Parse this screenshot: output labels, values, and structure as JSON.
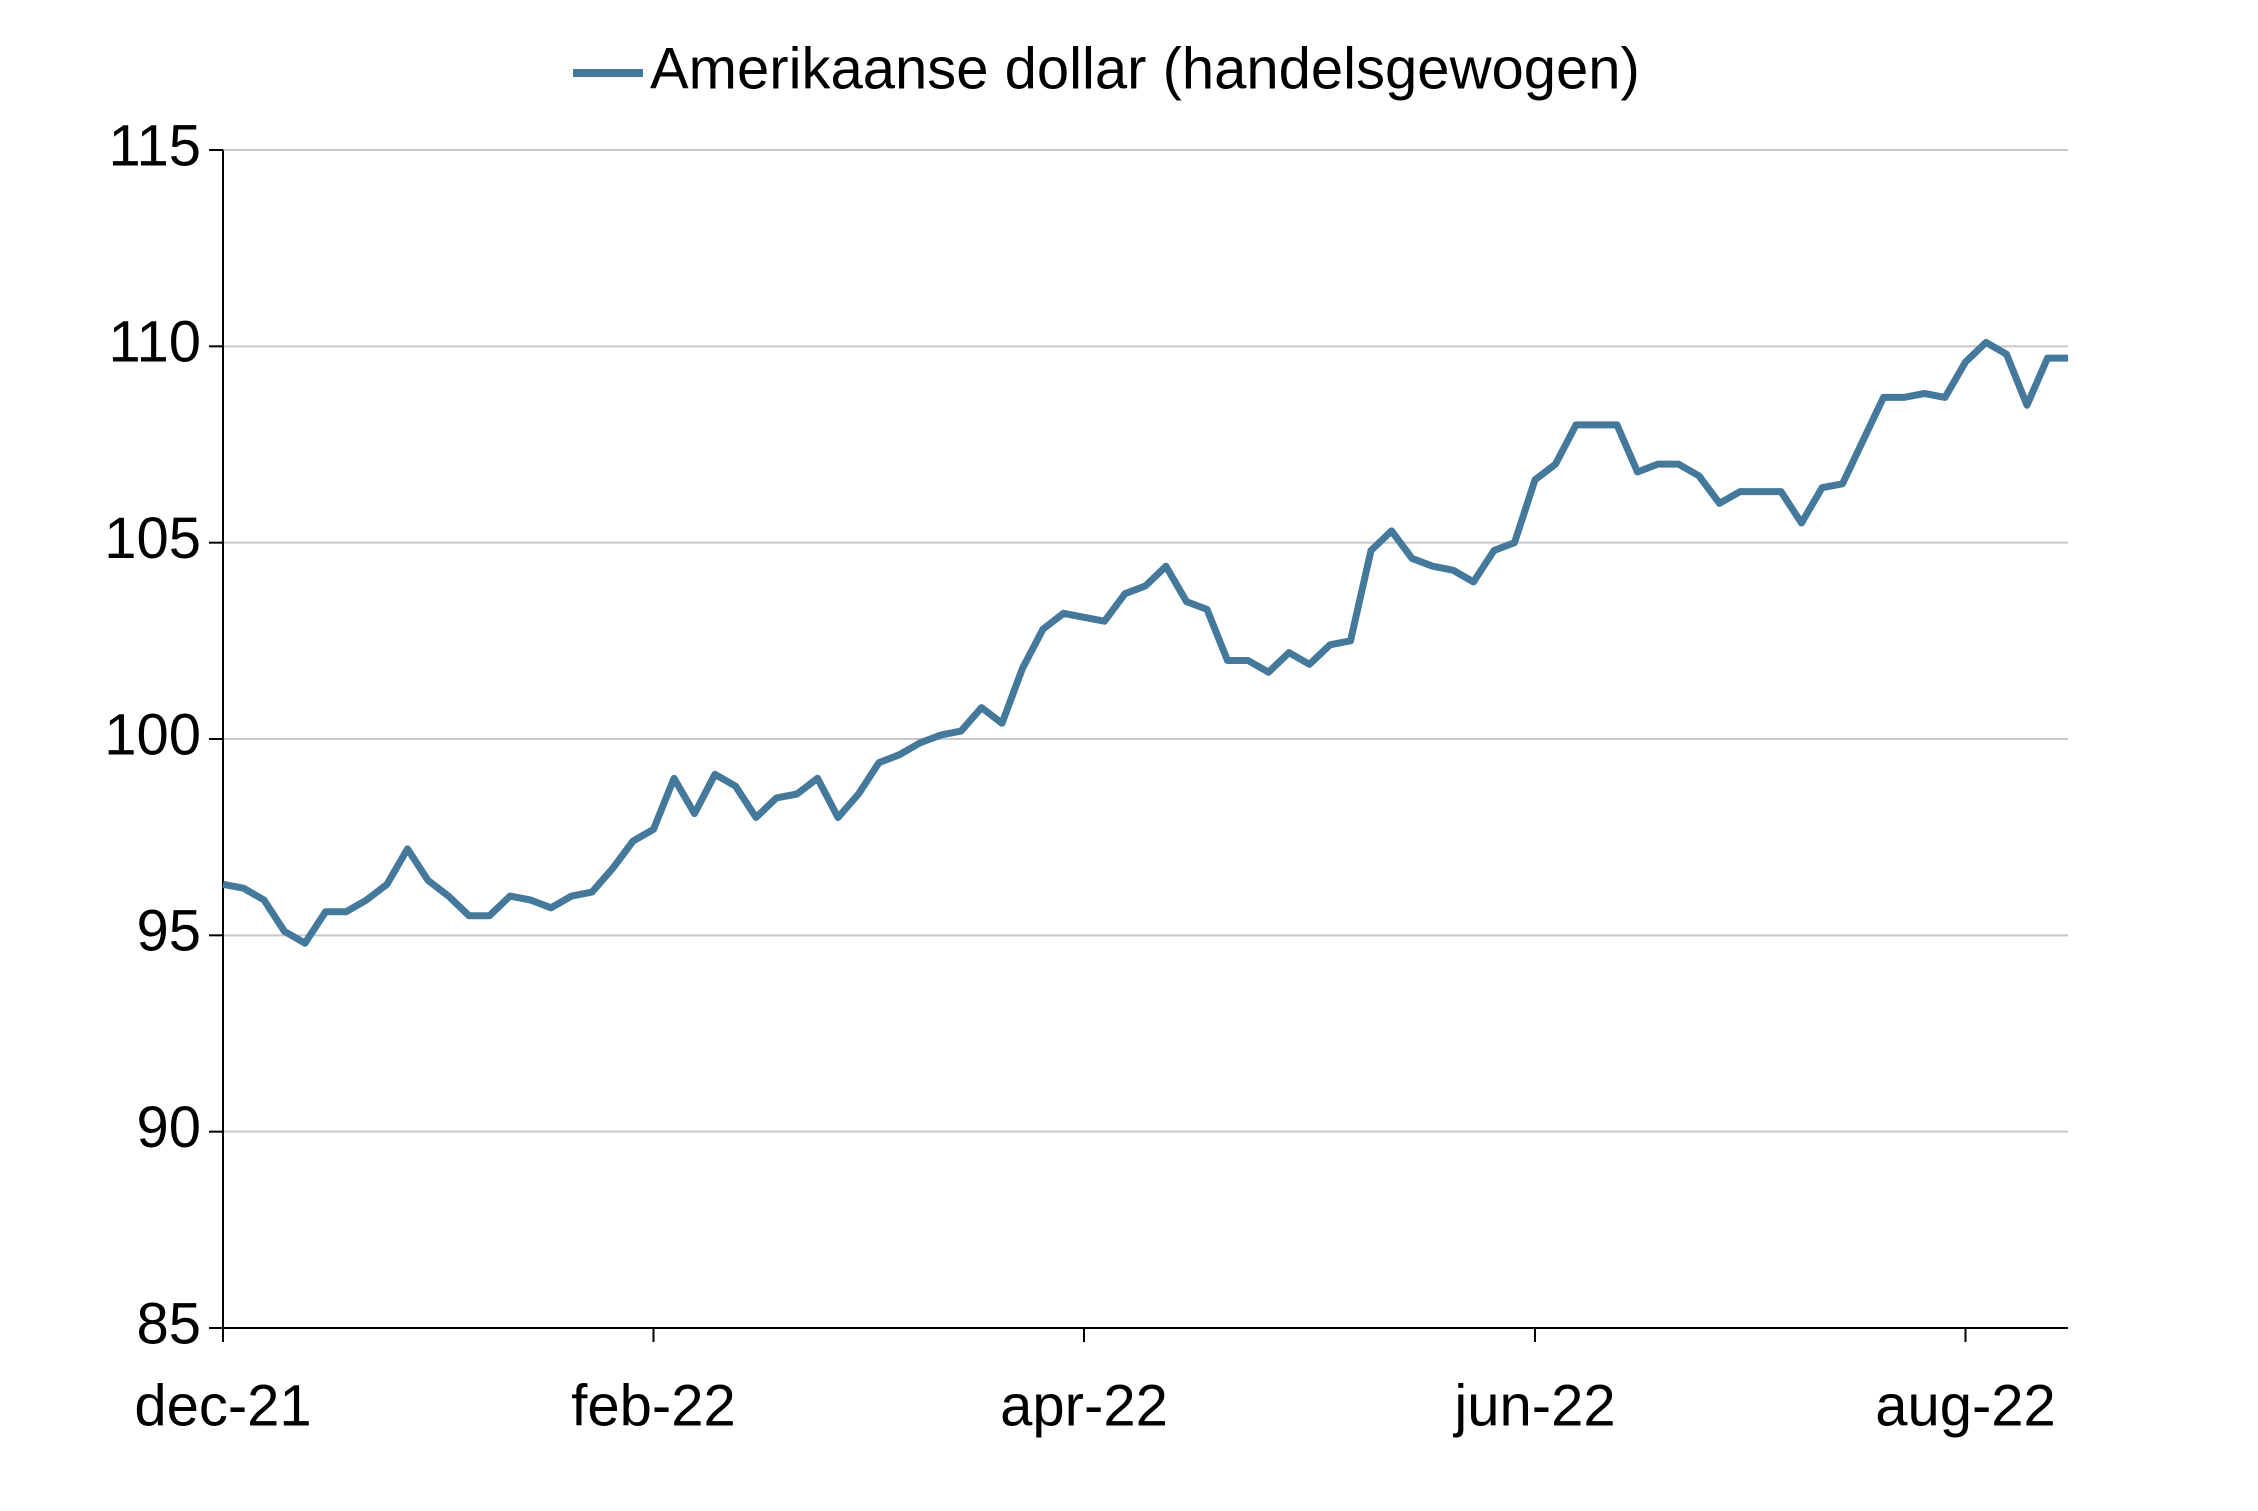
{
  "chart_data": {
    "type": "line",
    "categories": [
      "dec-21",
      null,
      null,
      null,
      null,
      null,
      null,
      null,
      null,
      null,
      null,
      null,
      null,
      null,
      null,
      null,
      null,
      null,
      null,
      null,
      null,
      "feb-22",
      null,
      null,
      null,
      null,
      null,
      null,
      null,
      null,
      null,
      null,
      null,
      null,
      null,
      null,
      null,
      null,
      null,
      null,
      null,
      null,
      "apr-22",
      null,
      null,
      null,
      null,
      null,
      null,
      null,
      null,
      null,
      null,
      null,
      null,
      null,
      null,
      null,
      null,
      null,
      null,
      null,
      null,
      null,
      "jun-22",
      null,
      null,
      null,
      null,
      null,
      null,
      null,
      null,
      null,
      null,
      null,
      null,
      null,
      null,
      null,
      null,
      null,
      null,
      null,
      null,
      "aug-22",
      null,
      null,
      null,
      null,
      null
    ],
    "series": [
      {
        "name": "Amerikaanse dollar (handelsgewogen)",
        "color": "#44799b",
        "values": [
          96.3,
          96.2,
          95.9,
          95.1,
          94.8,
          95.6,
          95.6,
          95.9,
          96.3,
          97.2,
          96.4,
          96.0,
          95.5,
          95.5,
          96.0,
          95.9,
          95.7,
          96.0,
          96.1,
          96.7,
          97.4,
          97.7,
          99.0,
          98.1,
          99.1,
          98.8,
          98.0,
          98.5,
          98.6,
          99.0,
          98.0,
          98.6,
          99.4,
          99.6,
          99.9,
          100.1,
          100.2,
          100.8,
          100.4,
          101.8,
          102.8,
          103.2,
          103.1,
          103.0,
          103.7,
          103.9,
          104.4,
          103.5,
          103.3,
          102.0,
          102.0,
          101.7,
          102.2,
          101.9,
          102.4,
          102.5,
          104.8,
          105.3,
          104.6,
          104.4,
          104.3,
          104.0,
          104.8,
          105.0,
          106.6,
          107.0,
          108.0,
          108.0,
          108.0,
          106.8,
          107.0,
          107.0,
          106.7,
          106.0,
          106.3,
          106.3,
          106.3,
          105.5,
          106.4,
          106.5,
          107.6,
          108.7,
          108.7,
          108.8,
          108.7,
          109.6,
          110.1,
          109.8,
          108.5,
          109.7,
          109.7
        ]
      }
    ],
    "ylim": [
      85,
      115
    ],
    "yticks": [
      85,
      90,
      95,
      100,
      105,
      110,
      115
    ],
    "grid": true,
    "legend": "top"
  }
}
